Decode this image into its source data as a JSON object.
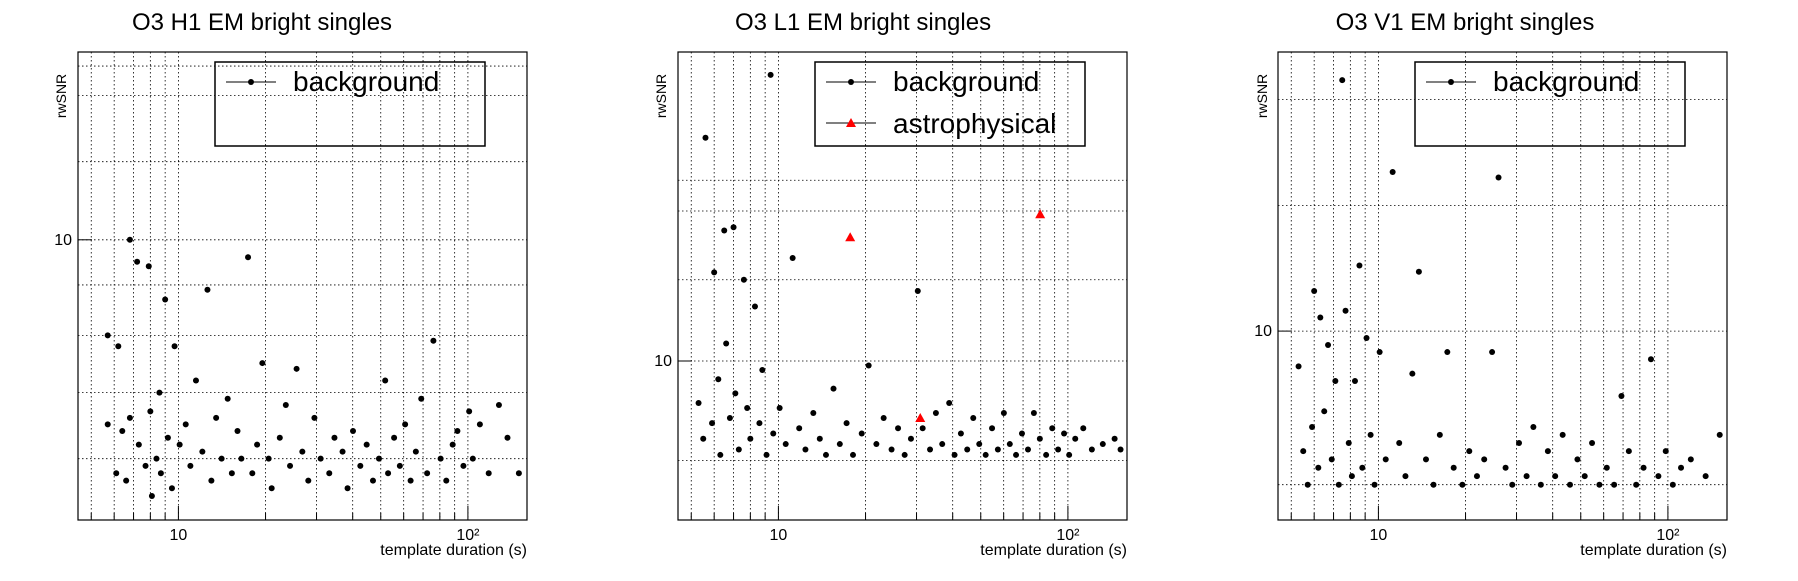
{
  "chart_data": [
    {
      "type": "scatter",
      "title": "O3 H1 EM bright singles",
      "xlabel": "template duration (s)",
      "ylabel": "rwSNR",
      "x_scale": "log",
      "y_scale": "log",
      "xlim": [
        4.5,
        160
      ],
      "ylim": [
        5.2,
        15.5
      ],
      "x_ticks": [
        {
          "value": 10,
          "label": "10"
        },
        {
          "value": 100,
          "label": "10²"
        }
      ],
      "y_ticks": [
        {
          "value": 10,
          "label": "10"
        }
      ],
      "grid": true,
      "legend_position": "top-right",
      "series": [
        {
          "name": "background",
          "marker": "circle",
          "color": "#000000",
          "points": [
            [
              5.7,
              8.0
            ],
            [
              5.7,
              6.5
            ],
            [
              6.1,
              5.8
            ],
            [
              6.2,
              7.8
            ],
            [
              6.4,
              6.4
            ],
            [
              6.6,
              5.7
            ],
            [
              6.8,
              10.0
            ],
            [
              6.8,
              6.6
            ],
            [
              7.2,
              9.5
            ],
            [
              7.3,
              6.2
            ],
            [
              7.7,
              5.9
            ],
            [
              7.9,
              9.4
            ],
            [
              8.0,
              6.7
            ],
            [
              8.1,
              5.5
            ],
            [
              8.4,
              6.0
            ],
            [
              8.6,
              7.0
            ],
            [
              8.7,
              5.8
            ],
            [
              9.0,
              8.7
            ],
            [
              9.2,
              6.3
            ],
            [
              9.5,
              5.6
            ],
            [
              9.7,
              7.8
            ],
            [
              10.1,
              6.2
            ],
            [
              10.6,
              6.5
            ],
            [
              11.0,
              5.9
            ],
            [
              11.5,
              7.2
            ],
            [
              12.1,
              6.1
            ],
            [
              12.6,
              8.9
            ],
            [
              13.0,
              5.7
            ],
            [
              13.5,
              6.6
            ],
            [
              14.1,
              6.0
            ],
            [
              14.8,
              6.9
            ],
            [
              15.3,
              5.8
            ],
            [
              16.0,
              6.4
            ],
            [
              16.5,
              6.0
            ],
            [
              17.4,
              9.6
            ],
            [
              18.0,
              5.8
            ],
            [
              18.7,
              6.2
            ],
            [
              19.5,
              7.5
            ],
            [
              20.5,
              6.0
            ],
            [
              21.0,
              5.6
            ],
            [
              22.4,
              6.3
            ],
            [
              23.5,
              6.8
            ],
            [
              24.3,
              5.9
            ],
            [
              25.6,
              7.4
            ],
            [
              26.8,
              6.1
            ],
            [
              28.1,
              5.7
            ],
            [
              29.5,
              6.6
            ],
            [
              31.0,
              6.0
            ],
            [
              33.2,
              5.8
            ],
            [
              34.6,
              6.3
            ],
            [
              36.9,
              6.1
            ],
            [
              38.4,
              5.6
            ],
            [
              40.1,
              6.4
            ],
            [
              42.5,
              5.9
            ],
            [
              44.7,
              6.2
            ],
            [
              47.0,
              5.7
            ],
            [
              49.3,
              6.0
            ],
            [
              51.8,
              7.2
            ],
            [
              53.0,
              5.8
            ],
            [
              55.6,
              6.3
            ],
            [
              58.2,
              5.9
            ],
            [
              60.7,
              6.5
            ],
            [
              63.4,
              5.7
            ],
            [
              66.1,
              6.1
            ],
            [
              69.0,
              6.9
            ],
            [
              72.3,
              5.8
            ],
            [
              76.0,
              7.9
            ],
            [
              80.5,
              6.0
            ],
            [
              84.2,
              5.7
            ],
            [
              88.6,
              6.2
            ],
            [
              92.0,
              6.4
            ],
            [
              96.5,
              5.9
            ],
            [
              101.0,
              6.7
            ],
            [
              104.0,
              6.0
            ],
            [
              110.0,
              6.5
            ],
            [
              118.0,
              5.8
            ],
            [
              128.0,
              6.8
            ],
            [
              137.0,
              6.3
            ],
            [
              150.0,
              5.8
            ]
          ]
        }
      ]
    },
    {
      "type": "scatter",
      "title": "O3 L1 EM bright singles",
      "xlabel": "template duration (s)",
      "ylabel": "rwSNR",
      "x_scale": "log",
      "y_scale": "log",
      "xlim": [
        4.5,
        160
      ],
      "ylim": [
        7.0,
        20.0
      ],
      "x_ticks": [
        {
          "value": 10,
          "label": "10"
        },
        {
          "value": 100,
          "label": "10²"
        }
      ],
      "y_ticks": [
        {
          "value": 10,
          "label": "10"
        }
      ],
      "grid": true,
      "legend_position": "top-right",
      "series": [
        {
          "name": "background",
          "marker": "circle",
          "color": "#000000",
          "points": [
            [
              5.3,
              9.1
            ],
            [
              5.5,
              8.4
            ],
            [
              5.6,
              16.5
            ],
            [
              5.9,
              8.7
            ],
            [
              6.0,
              12.2
            ],
            [
              6.2,
              9.6
            ],
            [
              6.3,
              8.1
            ],
            [
              6.5,
              13.4
            ],
            [
              6.6,
              10.4
            ],
            [
              6.8,
              8.8
            ],
            [
              7.0,
              13.5
            ],
            [
              7.1,
              9.3
            ],
            [
              7.3,
              8.2
            ],
            [
              7.6,
              12.0
            ],
            [
              7.8,
              9.0
            ],
            [
              8.0,
              8.4
            ],
            [
              8.3,
              11.3
            ],
            [
              8.6,
              8.7
            ],
            [
              8.8,
              9.8
            ],
            [
              9.1,
              8.1
            ],
            [
              9.4,
              19.0
            ],
            [
              9.6,
              8.5
            ],
            [
              10.1,
              9.0
            ],
            [
              10.6,
              8.3
            ],
            [
              11.2,
              12.6
            ],
            [
              11.8,
              8.6
            ],
            [
              12.4,
              8.2
            ],
            [
              13.2,
              8.9
            ],
            [
              13.9,
              8.4
            ],
            [
              14.6,
              8.1
            ],
            [
              15.5,
              9.4
            ],
            [
              16.3,
              8.3
            ],
            [
              17.2,
              8.7
            ],
            [
              18.1,
              8.1
            ],
            [
              19.4,
              8.5
            ],
            [
              20.5,
              9.9
            ],
            [
              21.8,
              8.3
            ],
            [
              23.1,
              8.8
            ],
            [
              24.6,
              8.2
            ],
            [
              25.9,
              8.6
            ],
            [
              27.3,
              8.1
            ],
            [
              28.7,
              8.4
            ],
            [
              30.3,
              11.7
            ],
            [
              31.5,
              8.6
            ],
            [
              33.4,
              8.2
            ],
            [
              35.0,
              8.9
            ],
            [
              36.8,
              8.3
            ],
            [
              38.9,
              9.1
            ],
            [
              40.6,
              8.1
            ],
            [
              42.7,
              8.5
            ],
            [
              44.9,
              8.2
            ],
            [
              47.1,
              8.8
            ],
            [
              49.4,
              8.3
            ],
            [
              52.0,
              8.1
            ],
            [
              54.7,
              8.6
            ],
            [
              57.3,
              8.2
            ],
            [
              60.1,
              8.9
            ],
            [
              63.0,
              8.3
            ],
            [
              66.2,
              8.1
            ],
            [
              69.4,
              8.5
            ],
            [
              72.8,
              8.2
            ],
            [
              76.3,
              8.9
            ],
            [
              80.0,
              8.4
            ],
            [
              84.1,
              8.1
            ],
            [
              88.3,
              8.6
            ],
            [
              92.5,
              8.2
            ],
            [
              97.0,
              8.5
            ],
            [
              101.0,
              8.1
            ],
            [
              106.0,
              8.4
            ],
            [
              113.0,
              8.6
            ],
            [
              121.0,
              8.2
            ],
            [
              132.0,
              8.3
            ],
            [
              145.0,
              8.4
            ],
            [
              152.0,
              8.2
            ]
          ]
        },
        {
          "name": "astrophysical",
          "marker": "triangle",
          "color": "#ff0000",
          "points": [
            [
              17.7,
              13.2
            ],
            [
              30.9,
              8.8
            ],
            [
              80.2,
              13.9
            ]
          ]
        }
      ]
    },
    {
      "type": "scatter",
      "title": "O3 V1 EM bright singles",
      "xlabel": "template duration (s)",
      "ylabel": "rwSNR",
      "x_scale": "log",
      "y_scale": "log",
      "xlim": [
        4.5,
        160
      ],
      "ylim": [
        7.6,
        15.0
      ],
      "x_ticks": [
        {
          "value": 10,
          "label": "10"
        },
        {
          "value": 100,
          "label": "10²"
        }
      ],
      "y_ticks": [
        {
          "value": 10,
          "label": "10"
        }
      ],
      "grid": true,
      "legend_position": "top-right",
      "series": [
        {
          "name": "background",
          "marker": "circle",
          "color": "#000000",
          "points": [
            [
              5.3,
              9.5
            ],
            [
              5.5,
              8.4
            ],
            [
              5.7,
              8.0
            ],
            [
              5.9,
              8.7
            ],
            [
              6.0,
              10.6
            ],
            [
              6.2,
              8.2
            ],
            [
              6.3,
              10.2
            ],
            [
              6.5,
              8.9
            ],
            [
              6.7,
              9.8
            ],
            [
              6.9,
              8.3
            ],
            [
              7.1,
              9.3
            ],
            [
              7.3,
              8.0
            ],
            [
              7.5,
              14.4
            ],
            [
              7.7,
              10.3
            ],
            [
              7.9,
              8.5
            ],
            [
              8.1,
              8.1
            ],
            [
              8.3,
              9.3
            ],
            [
              8.6,
              11.0
            ],
            [
              8.8,
              8.2
            ],
            [
              9.1,
              9.9
            ],
            [
              9.4,
              8.6
            ],
            [
              9.7,
              8.0
            ],
            [
              10.1,
              9.7
            ],
            [
              10.6,
              8.3
            ],
            [
              11.2,
              12.6
            ],
            [
              11.8,
              8.5
            ],
            [
              12.4,
              8.1
            ],
            [
              13.1,
              9.4
            ],
            [
              13.8,
              10.9
            ],
            [
              14.6,
              8.3
            ],
            [
              15.5,
              8.0
            ],
            [
              16.3,
              8.6
            ],
            [
              17.3,
              9.7
            ],
            [
              18.2,
              8.2
            ],
            [
              19.5,
              8.0
            ],
            [
              20.6,
              8.4
            ],
            [
              21.9,
              8.1
            ],
            [
              23.2,
              8.3
            ],
            [
              24.7,
              9.7
            ],
            [
              26.0,
              12.5
            ],
            [
              27.5,
              8.2
            ],
            [
              29.0,
              8.0
            ],
            [
              30.6,
              8.5
            ],
            [
              32.5,
              8.1
            ],
            [
              34.3,
              8.7
            ],
            [
              36.4,
              8.0
            ],
            [
              38.5,
              8.4
            ],
            [
              40.8,
              8.1
            ],
            [
              43.3,
              8.6
            ],
            [
              45.9,
              8.0
            ],
            [
              48.7,
              8.3
            ],
            [
              51.6,
              8.1
            ],
            [
              54.7,
              8.5
            ],
            [
              58.0,
              8.0
            ],
            [
              61.5,
              8.2
            ],
            [
              65.2,
              8.0
            ],
            [
              69.1,
              9.1
            ],
            [
              73.3,
              8.4
            ],
            [
              77.7,
              8.0
            ],
            [
              82.4,
              8.2
            ],
            [
              87.4,
              9.6
            ],
            [
              92.7,
              8.1
            ],
            [
              98.3,
              8.4
            ],
            [
              104.0,
              8.0
            ],
            [
              111.0,
              8.2
            ],
            [
              120.0,
              8.3
            ],
            [
              135.0,
              8.1
            ],
            [
              151.0,
              8.6
            ]
          ]
        }
      ]
    }
  ]
}
